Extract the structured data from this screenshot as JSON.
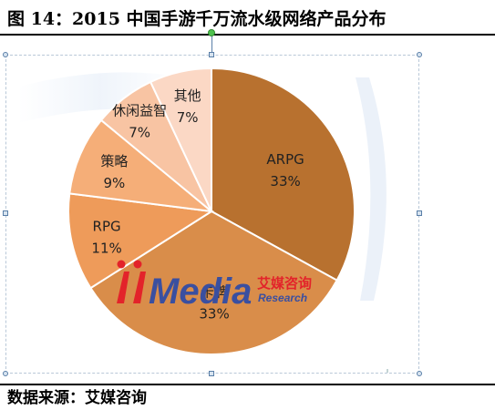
{
  "figure": {
    "title": "图 14：2015 中国手游千万流水级网络产品分布",
    "source": "数据来源：艾媒咨询"
  },
  "watermark": {
    "brand": "Media",
    "cn_name": "艾媒咨询",
    "en_name": "Research"
  },
  "colors": {
    "ARPG": "#b8712f",
    "卡牌": "#d98d4a",
    "RPG": "#ee9b5a",
    "策略": "#f5ae78",
    "休闲益智": "#f8c4a3",
    "其他": "#fbd8c5",
    "watermark_red": "#e3232a",
    "watermark_blue": "#3a4fa0"
  },
  "chart_data": {
    "type": "pie",
    "categories": [
      "ARPG",
      "卡牌",
      "RPG",
      "策略",
      "休闲益智",
      "其他"
    ],
    "values": [
      33,
      33,
      11,
      9,
      7,
      7
    ],
    "value_labels": [
      "33%",
      "33%",
      "11%",
      "9%",
      "7%",
      "7%"
    ],
    "unit": "%",
    "legend": "none"
  }
}
